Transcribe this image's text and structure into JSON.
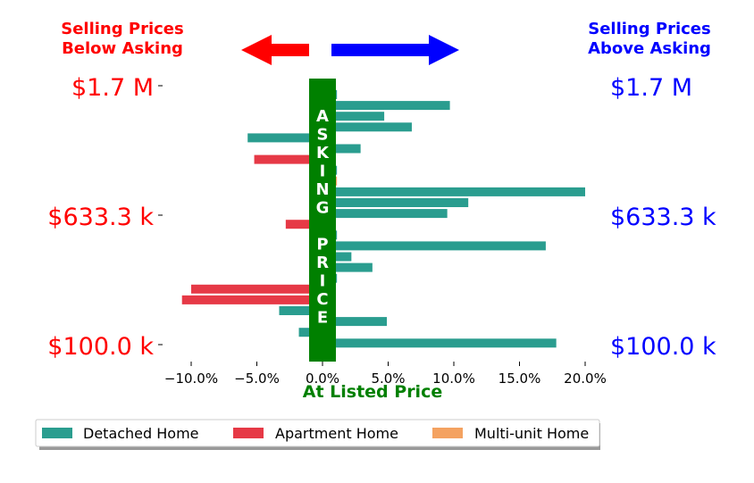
{
  "headers": {
    "below": [
      "Selling Prices",
      "Below Asking"
    ],
    "above": [
      "Selling Prices",
      "Above Asking"
    ]
  },
  "price_labels": {
    "left": [
      "$1.7 M",
      "$633.3 k",
      "$100.0 k"
    ],
    "right": [
      "$1.7 M",
      "$633.3 k",
      "$100.0 k"
    ]
  },
  "asking_label": [
    "A",
    "S",
    "K",
    "I",
    "N",
    "G",
    "",
    "P",
    "R",
    "I",
    "C",
    "E"
  ],
  "colors": {
    "below": "#ff0000",
    "above": "#0000ff",
    "asking": "#008000",
    "detached": "#2a9d8f",
    "apartment": "#e63946",
    "multiunit": "#f4a261"
  },
  "chart_data": {
    "type": "bar",
    "orientation": "horizontal",
    "xlabel": "At Listed Price",
    "xlim": [
      -12,
      21
    ],
    "xticks": [
      -10,
      -5,
      0,
      5,
      10,
      15,
      20
    ],
    "xtick_labels": [
      "−10.0%",
      "−5.0%",
      "0.0%",
      "5.0%",
      "10.0%",
      "15.0%",
      "20.0%"
    ],
    "legend": {
      "placement": "bottom",
      "entries": [
        "Detached Home",
        "Apartment Home",
        "Multi-unit Home"
      ]
    },
    "bars": [
      {
        "value": 1.1,
        "type": "detached"
      },
      {
        "value": 9.7,
        "type": "detached"
      },
      {
        "value": 4.7,
        "type": "detached"
      },
      {
        "value": 6.8,
        "type": "detached"
      },
      {
        "value": -5.7,
        "type": "detached"
      },
      {
        "value": 2.9,
        "type": "detached"
      },
      {
        "value": -5.2,
        "type": "apartment"
      },
      {
        "value": 1.1,
        "type": "detached"
      },
      {
        "value": 1.1,
        "type": "multiunit"
      },
      {
        "value": 20.0,
        "type": "detached"
      },
      {
        "value": 11.1,
        "type": "detached"
      },
      {
        "value": 9.5,
        "type": "detached"
      },
      {
        "value": -2.8,
        "type": "apartment"
      },
      {
        "value": 1.1,
        "type": "detached"
      },
      {
        "value": 17.0,
        "type": "detached"
      },
      {
        "value": 2.2,
        "type": "detached"
      },
      {
        "value": 3.8,
        "type": "detached"
      },
      {
        "value": 1.1,
        "type": "detached"
      },
      {
        "value": -10.0,
        "type": "apartment"
      },
      {
        "value": -10.7,
        "type": "apartment"
      },
      {
        "value": -3.3,
        "type": "detached"
      },
      {
        "value": 4.9,
        "type": "detached"
      },
      {
        "value": -1.8,
        "type": "detached"
      },
      {
        "value": 17.8,
        "type": "detached"
      }
    ]
  }
}
